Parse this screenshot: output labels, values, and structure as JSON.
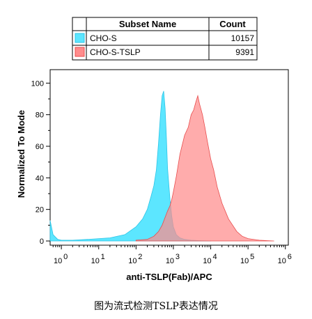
{
  "caption": "图为流式检测TSLP表达情况",
  "chart_data": {
    "type": "area",
    "xscale": "log",
    "xlabel": "anti-TSLP(Fab)/APC",
    "ylabel": "Normalized To Mode",
    "xlim": [
      0.5,
      1200000
    ],
    "ylim": [
      0,
      105
    ],
    "x_tick_labels": [
      "0",
      "1",
      "2",
      "3",
      "4",
      "5",
      "6"
    ],
    "y_ticks": [
      0,
      20,
      40,
      60,
      80,
      100
    ],
    "legend": {
      "headers": [
        "Subset Name",
        "Count"
      ],
      "entries": [
        {
          "name": "CHO-S",
          "count": "10157",
          "color": "#5ce6ff"
        },
        {
          "name": "CHO-S-TSLP",
          "count": "9391",
          "color": "#ff8c8c"
        }
      ]
    },
    "series": [
      {
        "name": "CHO-S",
        "fill": "#5ce6ff",
        "stroke": "#2cc4e6",
        "x": [
          0.5,
          0.6,
          0.8,
          1,
          2,
          5,
          10,
          20,
          50,
          100,
          150,
          200,
          250,
          300,
          350,
          400,
          450,
          500,
          550,
          600,
          650,
          700,
          800,
          900,
          1000,
          1200,
          1500,
          2000,
          3000,
          5000,
          10000
        ],
        "y": [
          13,
          4,
          1,
          0.5,
          0.5,
          1,
          1.5,
          2,
          4,
          9,
          14,
          20,
          28,
          35,
          45,
          62,
          80,
          92,
          95,
          84,
          66,
          46,
          28,
          16,
          9,
          4,
          2,
          1,
          0.5,
          0.2,
          0
        ]
      },
      {
        "name": "CHO-S-TSLP",
        "fill": "#ff8c8c",
        "stroke": "#e84c4c",
        "x": [
          100,
          200,
          300,
          400,
          500,
          600,
          700,
          800,
          900,
          1000,
          1200,
          1500,
          2000,
          2500,
          3000,
          3500,
          4000,
          4500,
          5000,
          6000,
          7000,
          8000,
          10000,
          12000,
          15000,
          20000,
          30000,
          50000,
          70000,
          100000,
          200000,
          500000
        ],
        "y": [
          0.5,
          1,
          3,
          6,
          10,
          15,
          19,
          22,
          26,
          31,
          41,
          55,
          67,
          72,
          80,
          83,
          88,
          92,
          87,
          80,
          72,
          64,
          52,
          45,
          34,
          24,
          14,
          6,
          3,
          1.5,
          0.5,
          0
        ]
      }
    ]
  }
}
